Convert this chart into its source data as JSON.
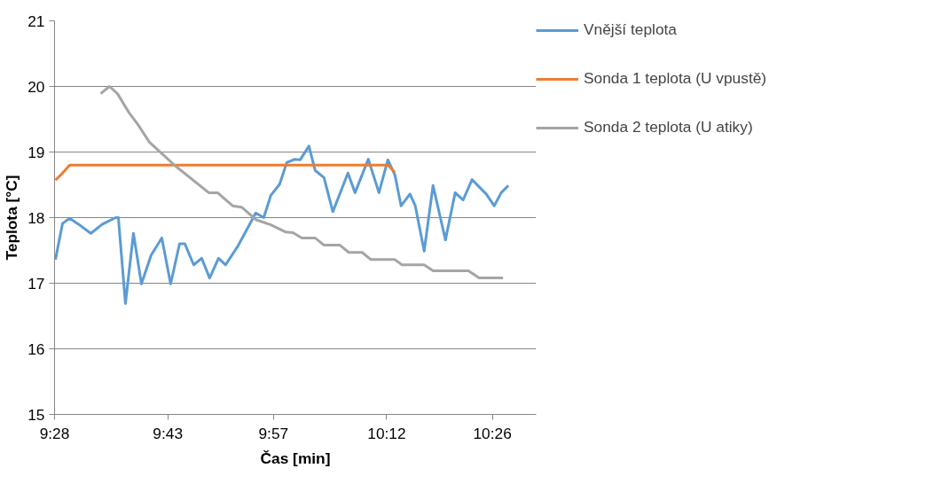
{
  "chart_data": {
    "type": "line",
    "xlabel": "Čas [min]",
    "ylabel": "Teplota [°C]",
    "xlim": [
      9.4667,
      10.53
    ],
    "ylim": [
      15,
      21
    ],
    "xticks": [
      {
        "value": 9.4667,
        "label": "9:28"
      },
      {
        "value": 9.7167,
        "label": "9:43"
      },
      {
        "value": 9.95,
        "label": "9:57"
      },
      {
        "value": 10.2,
        "label": "10:12"
      },
      {
        "value": 10.4333,
        "label": "10:26"
      }
    ],
    "yticks": [
      15,
      16,
      17,
      18,
      19,
      20,
      21
    ],
    "grid": "y",
    "legend": "right",
    "marker": "none",
    "line_style": "solid",
    "series": [
      {
        "name": "Vnější teplota",
        "color": "#5b9bd5",
        "x": [
          9.4687,
          9.4843,
          9.5,
          9.5195,
          9.5469,
          9.5724,
          9.6017,
          9.6076,
          9.6232,
          9.6409,
          9.6585,
          9.68,
          9.7035,
          9.723,
          9.7426,
          9.7544,
          9.7739,
          9.7915,
          9.8091,
          9.8287,
          9.8444,
          9.8718,
          9.9109,
          9.9285,
          9.9442,
          9.9637,
          9.9794,
          9.997,
          10.0087,
          10.0283,
          10.042,
          10.0616,
          10.0811,
          10.1144,
          10.1301,
          10.1594,
          10.1829,
          10.2025,
          10.2181,
          10.2318,
          10.2514,
          10.2631,
          10.2827,
          10.3023,
          10.3297,
          10.3512,
          10.3688,
          10.3884,
          10.4197,
          10.4373,
          10.4529,
          10.4686
        ],
        "values": [
          17.36,
          17.91,
          17.99,
          17.9,
          17.76,
          17.9,
          18.0,
          18.0,
          16.69,
          17.76,
          16.99,
          17.43,
          17.69,
          16.99,
          17.6,
          17.6,
          17.28,
          17.38,
          17.08,
          17.38,
          17.28,
          17.57,
          18.07,
          18.0,
          18.34,
          18.51,
          18.84,
          18.89,
          18.88,
          19.09,
          18.72,
          18.61,
          18.09,
          18.68,
          18.38,
          18.89,
          18.38,
          18.88,
          18.65,
          18.18,
          18.36,
          18.18,
          17.49,
          18.49,
          17.66,
          18.38,
          18.27,
          18.58,
          18.36,
          18.18,
          18.38,
          18.49
        ]
      },
      {
        "name": "Sonda 1 teplota (U vpustě)",
        "color": "#ed7d31",
        "x": [
          9.4687,
          9.4843,
          9.5,
          10.2025,
          10.2181
        ],
        "values": [
          18.57,
          18.68,
          18.8,
          18.8,
          18.69
        ]
      },
      {
        "name": "Sonda 2 teplota (U atiky)",
        "color": "#a5a5a5",
        "x": [
          9.5685,
          9.588,
          9.6056,
          9.6311,
          9.6506,
          9.6761,
          9.7348,
          9.8072,
          9.8267,
          9.86,
          9.8796,
          9.9109,
          9.9442,
          9.9774,
          9.9931,
          10.0126,
          10.042,
          10.0616,
          10.0968,
          10.1164,
          10.1457,
          10.1653,
          10.2181,
          10.2338,
          10.2827,
          10.3023,
          10.3805,
          10.404,
          10.4568
        ],
        "values": [
          19.89,
          20.0,
          19.89,
          19.6,
          19.42,
          19.15,
          18.78,
          18.38,
          18.38,
          18.18,
          18.16,
          17.97,
          17.89,
          17.78,
          17.77,
          17.69,
          17.69,
          17.58,
          17.58,
          17.47,
          17.47,
          17.36,
          17.36,
          17.28,
          17.28,
          17.19,
          17.19,
          17.08,
          17.08
        ]
      }
    ]
  }
}
